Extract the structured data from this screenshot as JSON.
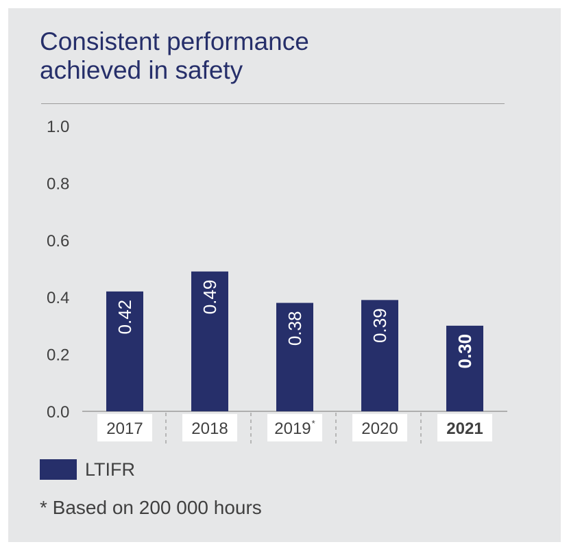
{
  "title_lines": [
    "Consistent performance",
    "achieved in safety"
  ],
  "colors": {
    "bar": "#262f6a",
    "background": "#e6e7e8",
    "title": "#262f6a",
    "text": "#404040"
  },
  "chart_data": {
    "type": "bar",
    "title": "Consistent performance achieved in safety",
    "categories": [
      "2017",
      "2018",
      "2019",
      "2020",
      "2021"
    ],
    "category_superscripts": [
      "",
      "",
      "*",
      "",
      ""
    ],
    "category_bold": [
      false,
      false,
      false,
      false,
      true
    ],
    "series": [
      {
        "name": "LTIFR",
        "values": [
          0.42,
          0.49,
          0.38,
          0.39,
          0.3
        ],
        "labels": [
          "0.42",
          "0.49",
          "0.38",
          "0.39",
          "0.30"
        ]
      }
    ],
    "ylim": [
      0,
      1.0
    ],
    "yticks": [
      "0.0",
      "0.2",
      "0.4",
      "0.6",
      "0.8",
      "1.0"
    ],
    "xlabel": "",
    "ylabel": "",
    "grid": false,
    "legend_position": "bottom-left"
  },
  "legend": {
    "label": "LTIFR"
  },
  "footnote": "* Based on 200 000 hours"
}
